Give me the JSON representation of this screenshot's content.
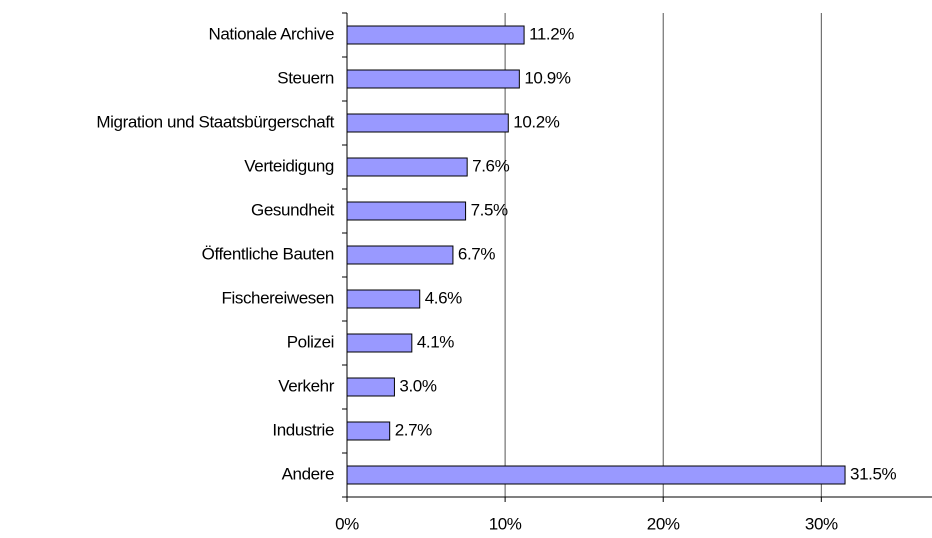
{
  "chart_data": {
    "type": "barh",
    "categories": [
      "Nationale Archive",
      "Steuern",
      "Migration und Staatsbürgerschaft",
      "Verteidigung",
      "Gesundheit",
      "Öffentliche Bauten",
      "Fischereiwesen",
      "Polizei",
      "Verkehr",
      "Industrie",
      "Andere"
    ],
    "values": [
      11.2,
      10.9,
      10.2,
      7.6,
      7.5,
      6.7,
      4.6,
      4.1,
      3.0,
      2.7,
      31.5
    ],
    "value_labels": [
      "11.2%",
      "10.9%",
      "10.2%",
      "7.6%",
      "7.5%",
      "6.7%",
      "4.6%",
      "4.1%",
      "3.0%",
      "2.7%",
      "31.5%"
    ],
    "color": "#9999ff",
    "xlim": [
      0,
      37
    ],
    "xticks": [
      {
        "value": 0,
        "label": "0%"
      },
      {
        "value": 10,
        "label": "10%"
      },
      {
        "value": 20,
        "label": "20%"
      },
      {
        "value": 30,
        "label": "30%"
      }
    ],
    "grid": true
  }
}
